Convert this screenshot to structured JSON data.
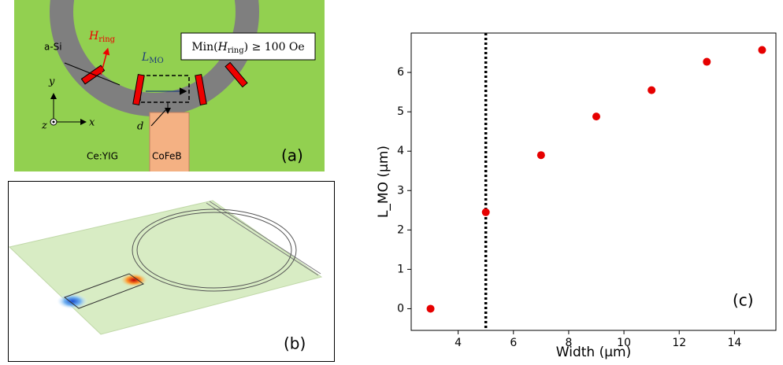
{
  "panel_a": {
    "material_top": "a-Si",
    "h_ring": {
      "symbol": "H",
      "subscript": "ring"
    },
    "l_mo": {
      "symbol": "L",
      "subscript": "MO"
    },
    "condition": {
      "prefix": "Min(",
      "symbol": "H",
      "subscript": "ring",
      "suffix": ") ≥ 100 Oe"
    },
    "axis_y": "y",
    "axis_x": "x",
    "axis_z": "z",
    "distance": "d",
    "substrate": "Ce:YIG",
    "magnet": "CoFeB",
    "label": "(a)"
  },
  "panel_b": {
    "label": "(b)"
  },
  "chart_data": {
    "type": "scatter",
    "label": "(c)",
    "x_label": "Width (μm)",
    "y_label": "L_MO (μm)",
    "x": [
      3,
      5,
      7,
      9,
      11,
      13,
      15
    ],
    "values": [
      0,
      2.45,
      3.9,
      4.88,
      5.55,
      6.27,
      6.57
    ],
    "color": "#e60000",
    "xlim": [
      2.3,
      15.5
    ],
    "ylim": [
      -0.55,
      7.0
    ],
    "xticks": [
      4,
      6,
      8,
      10,
      12,
      14
    ],
    "yticks": [
      0,
      1,
      2,
      3,
      4,
      5,
      6
    ],
    "vline": 5
  }
}
